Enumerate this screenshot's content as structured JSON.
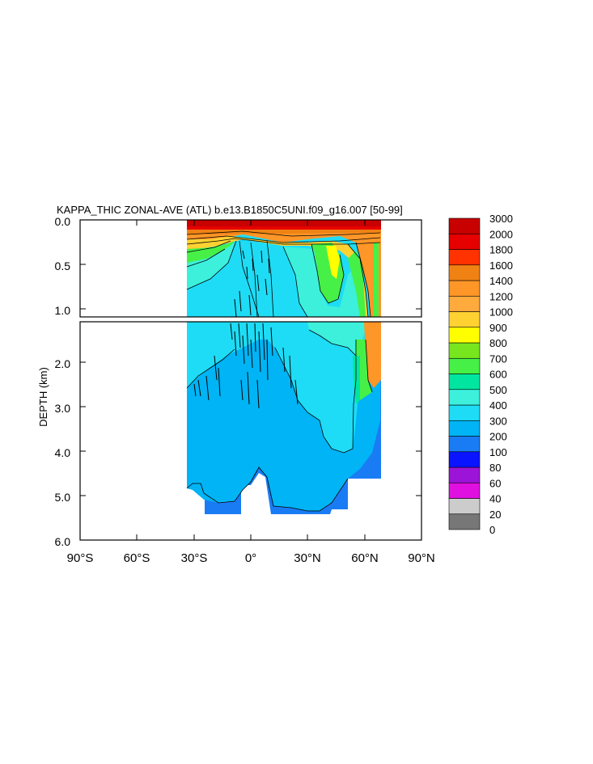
{
  "chart_data": {
    "type": "heatmap",
    "title": "KAPPA_THIC ZONAL-AVE (ATL) b.e13.B1850C5UNI.f09_g16.007 [50-99]",
    "ylabel": "DEPTH (km)",
    "xlabel": "",
    "xlim": [
      -90,
      90
    ],
    "ylim": [
      0,
      6
    ],
    "x_ticks": [
      "90°S",
      "60°S",
      "30°S",
      "0°",
      "30°N",
      "60°N",
      "90°N"
    ],
    "y_ticks_upper": [
      "0.0",
      "0.5",
      "1.0"
    ],
    "y_ticks_lower": [
      "2.0",
      "3.0",
      "4.0",
      "5.0",
      "6.0"
    ],
    "upper_panel_depth_range": [
      0,
      1.15
    ],
    "lower_panel_depth_range": [
      1.15,
      6.0
    ],
    "colorbar": {
      "levels": [
        "0",
        "20",
        "40",
        "60",
        "80",
        "100",
        "200",
        "300",
        "400",
        "500",
        "600",
        "700",
        "800",
        "900",
        "1000",
        "1200",
        "1400",
        "1600",
        "1800",
        "2000",
        "3000"
      ],
      "colors": [
        "#777777",
        "#cccccc",
        "#e010e0",
        "#9b14d8",
        "#0a14ff",
        "#1a7cf5",
        "#00b4f5",
        "#1edcf5",
        "#3cf0dc",
        "#00e6a0",
        "#46f046",
        "#78e61e",
        "#ffff00",
        "#ffd232",
        "#ffaa3c",
        "#ff9628",
        "#f08214",
        "#ff3200",
        "#e60000",
        "#c80000"
      ]
    }
  }
}
